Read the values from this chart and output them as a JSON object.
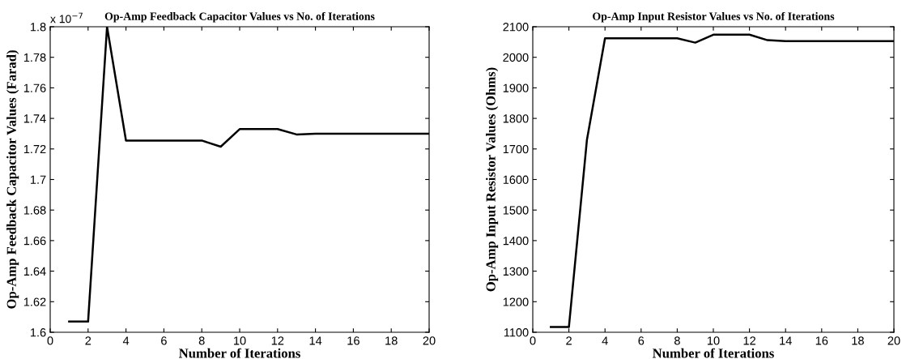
{
  "chart_data": [
    {
      "type": "line",
      "title": "Op-Amp Feedback Capacitor Values vs No. of Iterations",
      "xlabel": "Number of Iterations",
      "ylabel": "Op-Amp Feedback Capacitor Values (Farad)",
      "annotations": [
        "x 10$^{−7}$"
      ],
      "x": [
        1,
        2,
        3,
        4,
        5,
        6,
        7,
        8,
        9,
        10,
        11,
        12,
        13,
        14,
        15,
        16,
        17,
        18,
        19,
        20
      ],
      "series": [
        {
          "color": "#000000",
          "values": [
            1.607,
            1.607,
            1.8,
            1.7255,
            1.7255,
            1.7255,
            1.7255,
            1.7255,
            1.7215,
            1.733,
            1.733,
            1.733,
            1.7295,
            1.73,
            1.73,
            1.73,
            1.73,
            1.73,
            1.73,
            1.73
          ]
        }
      ],
      "xlim": [
        0,
        20
      ],
      "xticks": [
        0,
        2,
        4,
        6,
        8,
        10,
        12,
        14,
        16,
        18,
        20
      ],
      "ylim": [
        1.6,
        1.8
      ],
      "yticks": [
        1.6,
        1.62,
        1.64,
        1.66,
        1.68,
        1.7,
        1.72,
        1.74,
        1.76,
        1.78,
        1.8
      ],
      "grid": false,
      "legend": false
    },
    {
      "type": "line",
      "title": "Op-Amp Input Resistor Values vs No. of Iterations",
      "xlabel": "Number of Iterations",
      "ylabel": "Op-Amp Input Resistor Values (Ohms)",
      "x": [
        1,
        2,
        3,
        4,
        5,
        6,
        7,
        8,
        9,
        10,
        11,
        12,
        13,
        14,
        15,
        16,
        17,
        18,
        19,
        20
      ],
      "series": [
        {
          "color": "#000000",
          "values": [
            1117,
            1117,
            1730,
            2062,
            2062,
            2062,
            2062,
            2062,
            2048,
            2074,
            2074,
            2074,
            2056,
            2053,
            2053,
            2053,
            2053,
            2053,
            2053,
            2053
          ]
        }
      ],
      "xlim": [
        0,
        20
      ],
      "xticks": [
        0,
        2,
        4,
        6,
        8,
        10,
        12,
        14,
        16,
        18,
        20
      ],
      "ylim": [
        1100,
        2100
      ],
      "yticks": [
        1100,
        1200,
        1300,
        1400,
        1500,
        1600,
        1700,
        1800,
        1900,
        2000,
        2100
      ],
      "grid": false,
      "legend": false
    }
  ]
}
